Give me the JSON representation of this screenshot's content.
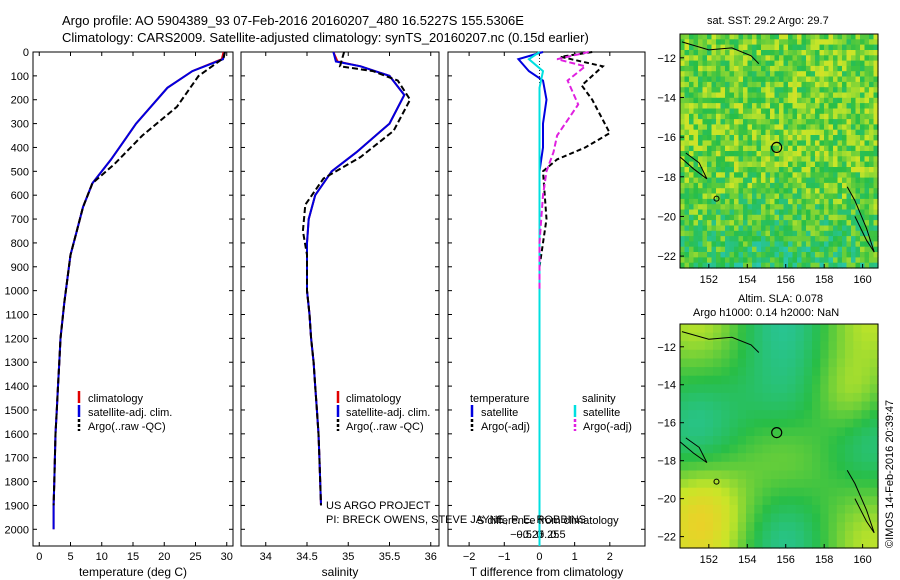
{
  "header": {
    "line1": "Argo profile: AO 5904389_93 07-Feb-2016 20160207_480 16.5227S 155.5306E",
    "line2": "Climatology: CARS2009. Satellite-adjusted climatology: synTS_20160207.nc (0.15d earlier)"
  },
  "colors": {
    "climatology": "#e00000",
    "satellite": "#0000e0",
    "argo": "#000000",
    "sal_satellite": "#00e0e0",
    "sal_argo": "#e020e0"
  },
  "depth_axis": {
    "ticks": [
      0,
      100,
      200,
      300,
      400,
      500,
      600,
      700,
      800,
      900,
      1000,
      1100,
      1200,
      1300,
      1400,
      1500,
      1600,
      1700,
      1800,
      1900,
      2000
    ],
    "ylim": [
      0,
      2070
    ]
  },
  "chart_data": [
    {
      "id": "temperature",
      "type": "line",
      "xlabel": "temperature (deg C)",
      "ylabel": "",
      "xlim": [
        -1,
        31
      ],
      "xticks": [
        0,
        5,
        10,
        15,
        20,
        25,
        30
      ],
      "xtick_labels": [
        "0",
        "5",
        "10",
        "15",
        "20",
        "25",
        "30"
      ],
      "legend": [
        "climatology",
        "satellite-adj. clim.",
        "Argo(..raw -QC)"
      ],
      "series": [
        {
          "name": "climatology",
          "color": "#e00000",
          "dash": "",
          "x": [
            29.5,
            29.2,
            24.5,
            20.5,
            15.5,
            11.5,
            8.5,
            7,
            6,
            5,
            4.5,
            4,
            3.4,
            3.2,
            3,
            2.8,
            2.6,
            2.5,
            2.4,
            2.3,
            2.3
          ],
          "y": [
            0,
            30,
            80,
            150,
            300,
            450,
            550,
            650,
            750,
            850,
            950,
            1050,
            1200,
            1300,
            1400,
            1500,
            1600,
            1700,
            1800,
            1900,
            2000
          ]
        },
        {
          "name": "satellite-adj. clim.",
          "color": "#0000e0",
          "dash": "",
          "x": [
            29.7,
            29.4,
            24.5,
            20.5,
            15.5,
            11.5,
            8.5,
            7,
            6,
            5,
            4.5,
            4,
            3.4,
            3.2,
            3,
            2.8,
            2.6,
            2.5,
            2.4,
            2.3,
            2.3
          ],
          "y": [
            0,
            30,
            80,
            150,
            300,
            450,
            550,
            650,
            750,
            850,
            950,
            1050,
            1200,
            1300,
            1400,
            1500,
            1600,
            1700,
            1800,
            1900,
            2000
          ]
        },
        {
          "name": "Argo(..raw -QC)",
          "color": "#000000",
          "dash": "6,3",
          "x": [
            29.7,
            29.5,
            25.5,
            22,
            16.5,
            12,
            8.5,
            7,
            6,
            5,
            4.5,
            4,
            3.4,
            3.2,
            3,
            2.8,
            2.6,
            2.5,
            2.4,
            2.3
          ],
          "y": [
            0,
            25,
            100,
            230,
            350,
            470,
            550,
            650,
            750,
            850,
            950,
            1050,
            1200,
            1300,
            1400,
            1500,
            1600,
            1700,
            1800,
            1900
          ]
        }
      ]
    },
    {
      "id": "salinity",
      "type": "line",
      "xlabel": "salinity",
      "ylabel": "",
      "xlim": [
        33.7,
        36.1
      ],
      "xticks": [
        34,
        34.5,
        35,
        35.5,
        36
      ],
      "xtick_labels": [
        "34",
        "34.5",
        "35",
        "35.5",
        "36"
      ],
      "legend": [
        "climatology",
        "satellite-adj. clim.",
        "Argo(..raw -QC)"
      ],
      "annotation_line1": "US ARGO PROJECT",
      "annotation_line2": "PI: BRECK OWENS, STEVE JAYNE, P. E. ROBBINS",
      "series": [
        {
          "name": "climatology",
          "color": "#e00000",
          "dash": "",
          "x": [
            34.82,
            34.87,
            35.15,
            35.5,
            35.68,
            35.5,
            35.1,
            34.8,
            34.6,
            34.52,
            34.5,
            34.5,
            34.5,
            34.53,
            34.55,
            34.58,
            34.6,
            34.62,
            34.64,
            34.65,
            34.66,
            34.67
          ],
          "y": [
            0,
            40,
            60,
            100,
            180,
            300,
            420,
            500,
            600,
            700,
            800,
            900,
            1000,
            1100,
            1200,
            1300,
            1400,
            1500,
            1600,
            1700,
            1800,
            1900
          ]
        },
        {
          "name": "satellite-adj. clim.",
          "color": "#0000e0",
          "dash": "",
          "x": [
            34.82,
            34.85,
            35.15,
            35.5,
            35.68,
            35.5,
            35.1,
            34.8,
            34.6,
            34.52,
            34.5,
            34.5,
            34.5,
            34.53,
            34.55,
            34.58,
            34.6,
            34.62,
            34.64,
            34.65,
            34.66,
            34.67
          ],
          "y": [
            0,
            40,
            60,
            100,
            180,
            300,
            420,
            500,
            600,
            700,
            800,
            900,
            1000,
            1100,
            1200,
            1300,
            1400,
            1500,
            1600,
            1700,
            1800,
            1900
          ]
        },
        {
          "name": "Argo(..raw -QC)",
          "color": "#000000",
          "dash": "6,3",
          "x": [
            34.95,
            34.9,
            35.3,
            35.6,
            35.75,
            35.55,
            35.15,
            34.7,
            34.48,
            34.45,
            34.5,
            34.5,
            34.53,
            34.55,
            34.58,
            34.6,
            34.62,
            34.64,
            34.65,
            34.66,
            34.67
          ],
          "y": [
            0,
            60,
            80,
            120,
            200,
            330,
            440,
            530,
            640,
            750,
            850,
            1000,
            1100,
            1200,
            1300,
            1400,
            1500,
            1600,
            1700,
            1800,
            1900
          ]
        }
      ]
    },
    {
      "id": "difference",
      "type": "line",
      "xlabel": "T difference from climatology",
      "x2label": "S difference from climatology",
      "xlim": [
        -2.6,
        3
      ],
      "xticks": [
        -2,
        -1,
        0,
        1,
        2
      ],
      "xtick_labels": [
        "−2",
        "−1",
        "0",
        "1",
        "2"
      ],
      "x2ticks": [
        -0.5,
        -0.25,
        0,
        0.25,
        0.5
      ],
      "x2tick_labels": [
        "−0.5",
        "−0.25",
        "0",
        "0.25",
        "0.5"
      ],
      "legend_heading_t": "temperature",
      "legend_heading_s": "salinity",
      "legend_t": [
        "satellite",
        "Argo(-adj)"
      ],
      "legend_s": [
        "satellite",
        "Argo(-adj)"
      ],
      "series": [
        {
          "name": "T satellite",
          "color": "#0000e0",
          "dash": "",
          "x": [
            0.1,
            -0.6,
            -0.3,
            0.1,
            0.2,
            0.1,
            0.1,
            0,
            0,
            0,
            0,
            0,
            0,
            0,
            0
          ],
          "y": [
            0,
            30,
            80,
            120,
            200,
            300,
            400,
            500,
            700,
            900,
            1100,
            1300,
            1500,
            1800,
            2000
          ]
        },
        {
          "name": "T Argo(-adj)",
          "color": "#000000",
          "dash": "5,3",
          "x": [
            1.5,
            0.6,
            1.8,
            1.2,
            1.5,
            2,
            1.3,
            0.5,
            0.1,
            0.2,
            0.1,
            0,
            0,
            0
          ],
          "y": [
            0,
            20,
            60,
            140,
            200,
            340,
            400,
            450,
            500,
            700,
            800,
            900,
            1000,
            1100
          ]
        },
        {
          "name": "S satellite",
          "color": "#00e0e0",
          "dash": "",
          "x": [
            0,
            -0.3,
            0.1,
            0,
            0,
            0,
            0,
            0,
            0,
            0,
            0,
            0,
            0,
            0
          ],
          "y": [
            0,
            30,
            80,
            150,
            300,
            500,
            700,
            900,
            1100,
            1300,
            1500,
            1700,
            1900,
            2070
          ]
        },
        {
          "name": "S Argo(-adj)",
          "color": "#e020e0",
          "dash": "6,3",
          "x": [
            1.4,
            0.5,
            1.3,
            0.8,
            1.1,
            0.5,
            0.4,
            0.2,
            0.1,
            0,
            0,
            0
          ],
          "y": [
            0,
            30,
            60,
            120,
            220,
            350,
            420,
            500,
            600,
            800,
            900,
            1000
          ]
        }
      ]
    },
    {
      "id": "sst_map",
      "type": "heatmap",
      "title": "sat. SST: 29.2  Argo: 29.7",
      "xticks": [
        152,
        154,
        156,
        158,
        160
      ],
      "yticks": [
        -12,
        -14,
        -16,
        -18,
        -20,
        -22
      ],
      "xlim": [
        150.5,
        160.8
      ],
      "ylim": [
        -22.6,
        -10.8
      ],
      "marker": {
        "lon": 155.53,
        "lat": -16.52
      }
    },
    {
      "id": "sla_map",
      "type": "heatmap",
      "title": "Altim. SLA: 0.078",
      "subtitle": "Argo h1000: 0.14 h2000: NaN",
      "xticks": [
        152,
        154,
        156,
        158,
        160
      ],
      "yticks": [
        -12,
        -14,
        -16,
        -18,
        -20,
        -22
      ],
      "xlim": [
        150.5,
        160.8
      ],
      "ylim": [
        -22.6,
        -10.8
      ],
      "marker": {
        "lon": 155.53,
        "lat": -16.52
      },
      "footer": "©IMOS 14-Feb-2016 20:39:47"
    }
  ]
}
